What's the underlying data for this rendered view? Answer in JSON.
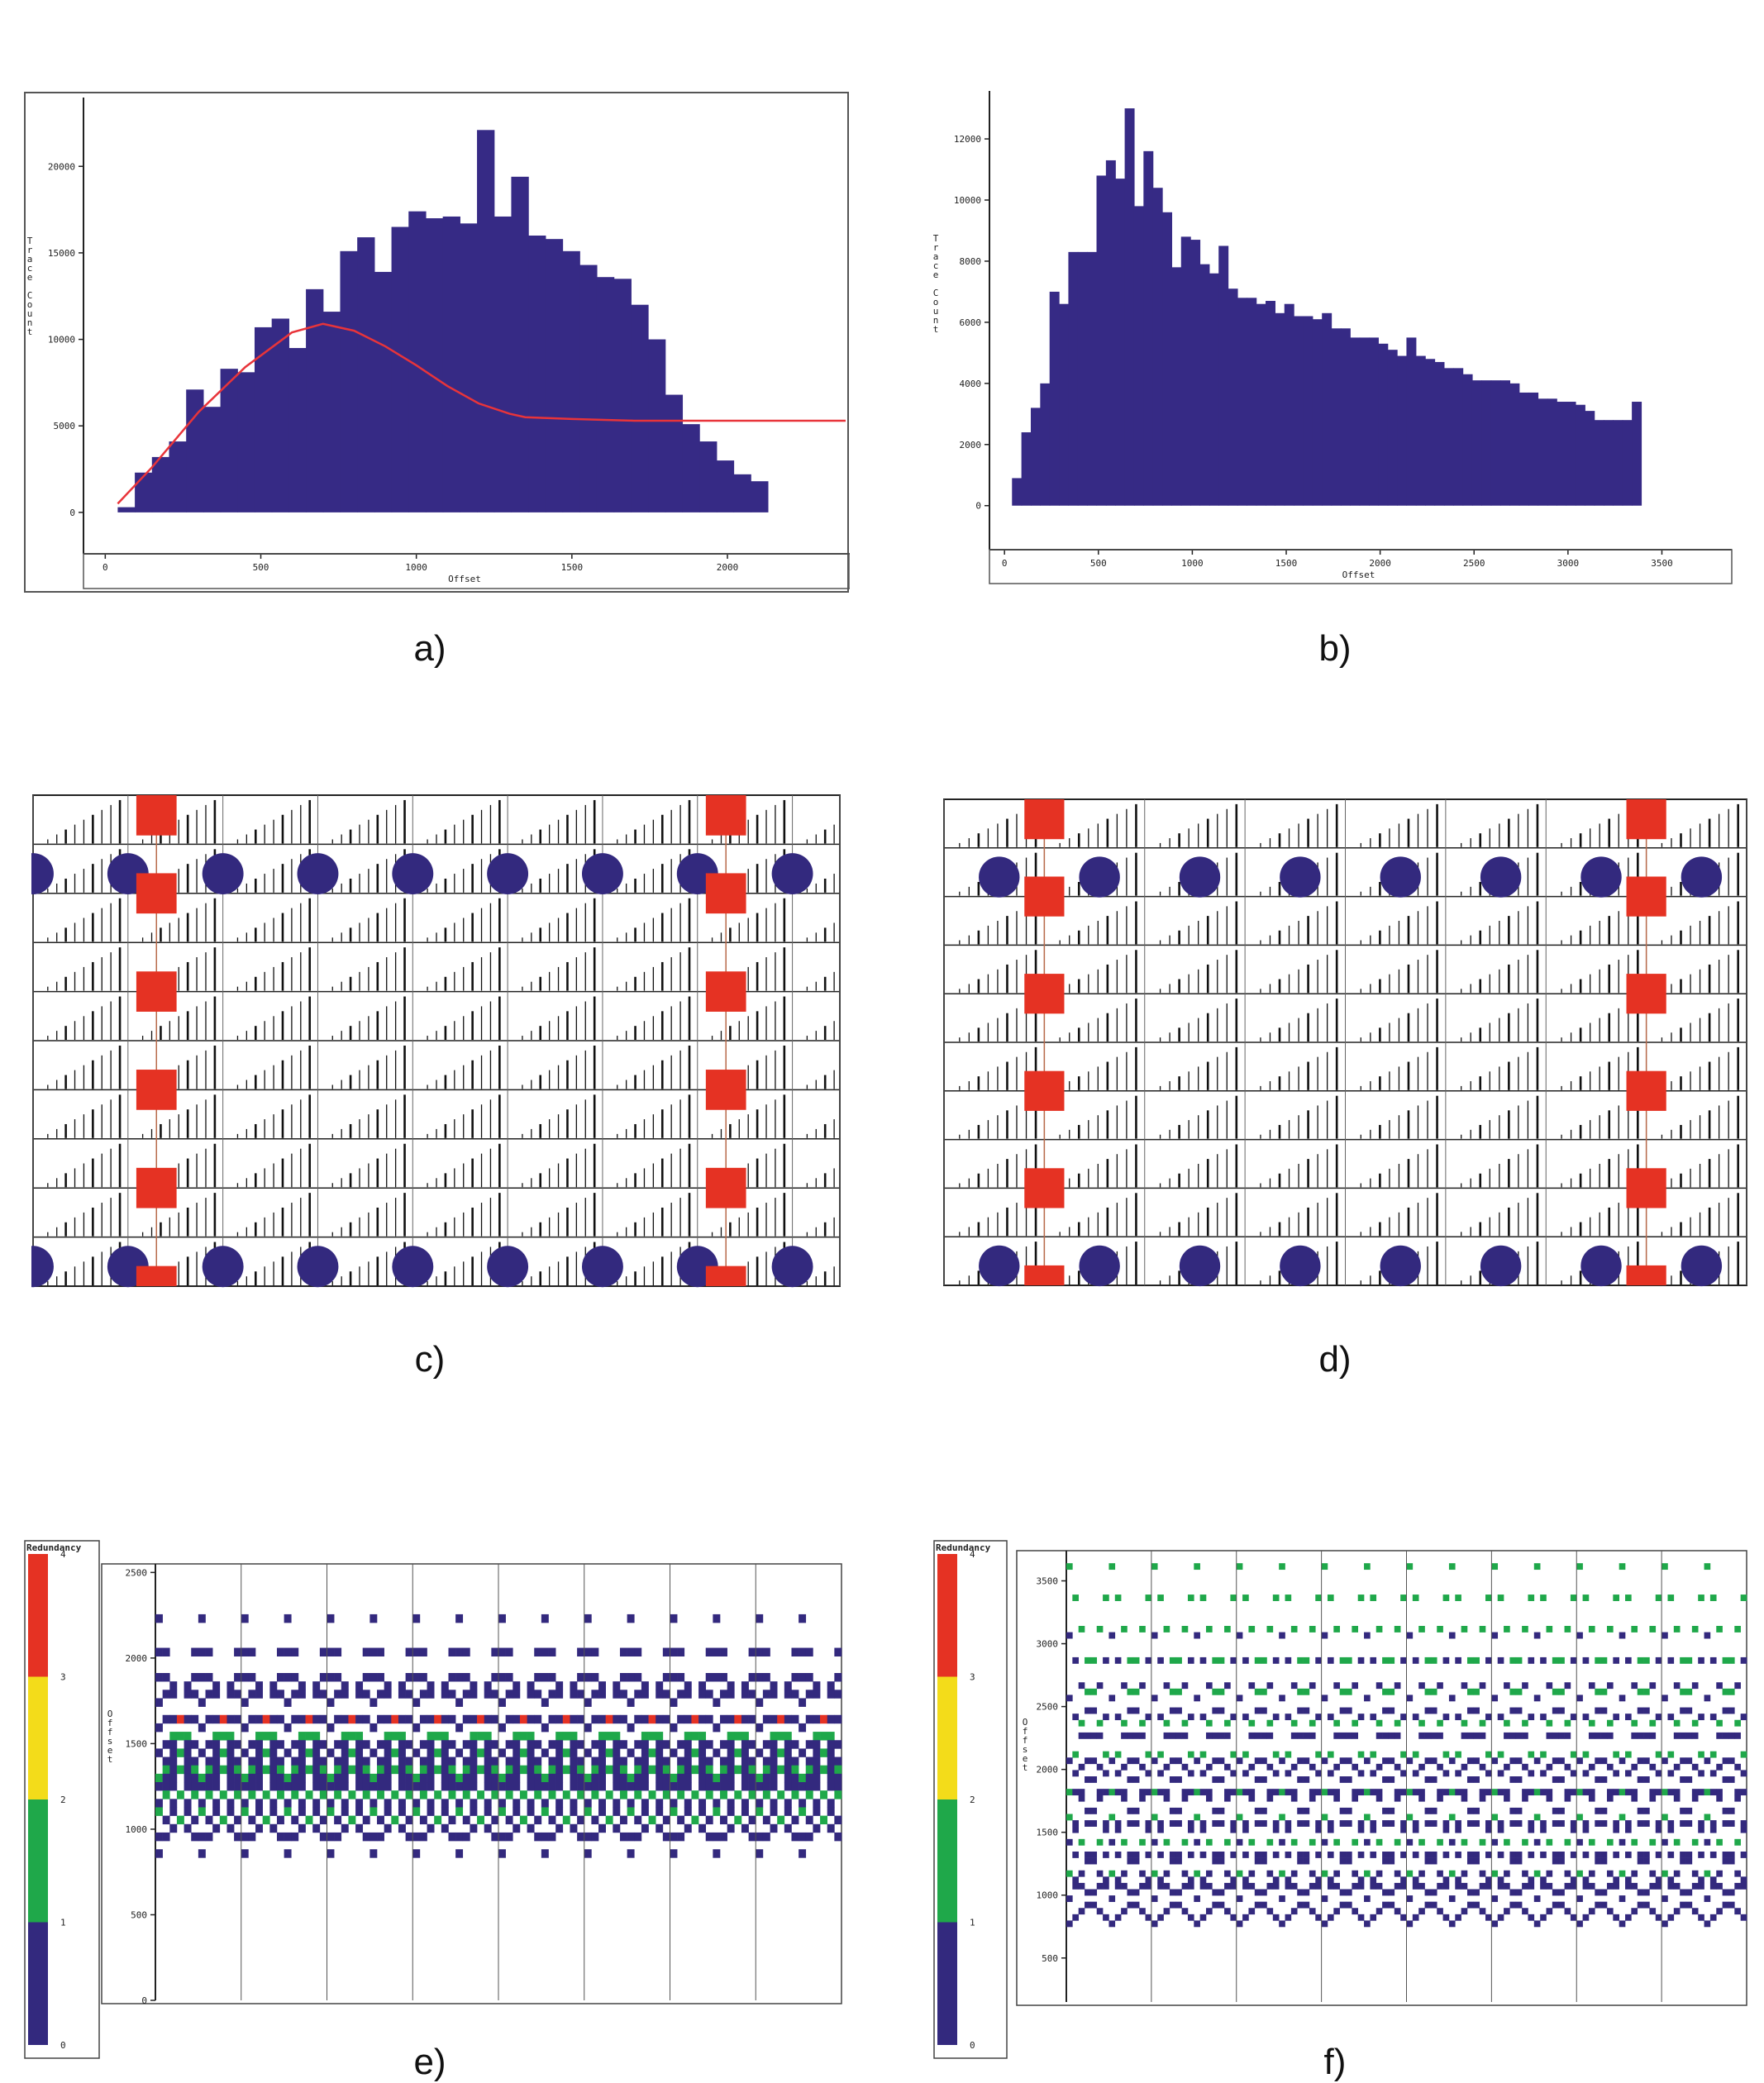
{
  "colors": {
    "bar": "#362a85",
    "curve": "#e8343a",
    "red": "#e53223",
    "blue": "#33297e",
    "green": "#1fa84a",
    "yellow": "#f3dc1a",
    "frame": "#333333"
  },
  "panel_labels": [
    "a)",
    "b)",
    "c)",
    "d)",
    "e)",
    "f)"
  ],
  "chart_data": [
    {
      "id": "a",
      "type": "bar",
      "xlabel": "Offset",
      "ylabel": "Trace Count",
      "xlim": [
        -70,
        2380
      ],
      "ylim": [
        -1200,
        23500
      ],
      "xticks": [
        0,
        500,
        1000,
        1500,
        2000
      ],
      "yticks": [
        0,
        5000,
        10000,
        15000,
        20000
      ],
      "bin_width": 55,
      "bin_start": 40,
      "values": [
        300,
        2300,
        3200,
        4100,
        7100,
        6100,
        8300,
        8100,
        10700,
        11200,
        9500,
        12900,
        11600,
        15100,
        15900,
        13900,
        16500,
        17400,
        17000,
        17100,
        16700,
        22100,
        17100,
        19400,
        16000,
        15800,
        15100,
        14300,
        13600,
        13500,
        12000,
        10000,
        6800,
        5100,
        4100,
        3000,
        2200,
        1800
      ],
      "curve": {
        "x": [
          40,
          150,
          300,
          450,
          600,
          700,
          800,
          900,
          1000,
          1100,
          1200,
          1300,
          1350,
          1500,
          1700,
          1900,
          2100,
          2380
        ],
        "y": [
          500,
          2600,
          5800,
          8400,
          10400,
          10900,
          10500,
          9600,
          8500,
          7300,
          6300,
          5700,
          5500,
          5400,
          5300,
          5300,
          5300,
          5300
        ]
      }
    },
    {
      "id": "b",
      "type": "bar",
      "xlabel": "Offset",
      "ylabel": "Trace Count",
      "xlim": [
        -80,
        3850
      ],
      "ylim": [
        -900,
        13300
      ],
      "xticks": [
        0,
        500,
        1000,
        1500,
        2000,
        2500,
        3000,
        3500
      ],
      "yticks": [
        0,
        2000,
        4000,
        6000,
        8000,
        10000,
        12000
      ],
      "bin_width": 50,
      "bin_start": 40,
      "values": [
        900,
        2400,
        3200,
        4000,
        7000,
        6600,
        8300,
        8300,
        8300,
        10800,
        11300,
        10700,
        13000,
        9800,
        11600,
        10400,
        9600,
        7800,
        8800,
        8700,
        7900,
        7600,
        8500,
        7100,
        6800,
        6800,
        6600,
        6700,
        6300,
        6600,
        6200,
        6200,
        6100,
        6300,
        5800,
        5800,
        5500,
        5500,
        5500,
        5300,
        5100,
        4900,
        5500,
        4900,
        4800,
        4700,
        4500,
        4500,
        4300,
        4100,
        4100,
        4100,
        4100,
        4000,
        3700,
        3700,
        3500,
        3500,
        3400,
        3400,
        3300,
        3100,
        2800,
        2800,
        2800,
        2800,
        3400
      ]
    },
    {
      "id": "c",
      "type": "scatter",
      "series": [
        {
          "marker": "circle",
          "rows": [
            1,
            9
          ],
          "cols": [
            0,
            1,
            2,
            3,
            4,
            5,
            6,
            7,
            8
          ]
        },
        {
          "marker": "square",
          "rows": [
            0,
            2,
            4,
            6,
            8,
            10
          ],
          "cols": [
            1.3,
            7.3
          ]
        }
      ],
      "grid": {
        "rows": 10,
        "cols": 8.5
      }
    },
    {
      "id": "d",
      "type": "scatter",
      "series": [
        {
          "marker": "circle",
          "rows": [
            1,
            9
          ],
          "cols": [
            0,
            1,
            2,
            3,
            4,
            5,
            6,
            7
          ]
        },
        {
          "marker": "square",
          "rows": [
            0,
            2,
            4,
            6,
            8,
            10
          ],
          "cols": [
            1,
            7
          ]
        }
      ],
      "grid": {
        "rows": 10,
        "cols": 8
      }
    },
    {
      "id": "e",
      "type": "heatmap",
      "legend_title": "Redundancy",
      "legend_ticks": [
        0,
        1,
        2,
        3,
        4
      ],
      "ylabel": "Offset",
      "yticks": [
        0,
        500,
        1000,
        1500,
        2000,
        2500
      ],
      "ylim": [
        0,
        2550
      ],
      "period_cells": 12,
      "cols": 96,
      "rows": 52,
      "families": [
        {
          "apex": 2250,
          "depth": 2250
        },
        {
          "apex": 2050,
          "depth": 1450
        },
        {
          "apex": 1900,
          "depth": 1250
        },
        {
          "apex": 1750,
          "depth": 1100
        },
        {
          "apex": 1600,
          "depth": 950
        },
        {
          "apex": 1450,
          "depth": 900
        },
        {
          "apex": 1300,
          "depth": 800
        }
      ]
    },
    {
      "id": "f",
      "type": "heatmap",
      "legend_title": "Redundancy",
      "legend_ticks": [
        0,
        1,
        2,
        3,
        4
      ],
      "ylabel": "Offset",
      "yticks": [
        500,
        1000,
        1500,
        2000,
        2500,
        3000,
        3500
      ],
      "ylim": [
        150,
        3740
      ],
      "period_cells": 14,
      "cols": 112,
      "rows": 72,
      "families": [
        {
          "apex": 3620,
          "depth": 3500
        },
        {
          "apex": 3620,
          "depth": 3500,
          "shift": 0.5
        },
        {
          "apex": 3100,
          "depth": 2900
        },
        {
          "apex": 2600,
          "depth": 2300
        },
        {
          "apex": 2100,
          "depth": 1800
        },
        {
          "apex": 1650,
          "depth": 1300
        },
        {
          "apex": 1200,
          "depth": 800
        }
      ]
    }
  ]
}
